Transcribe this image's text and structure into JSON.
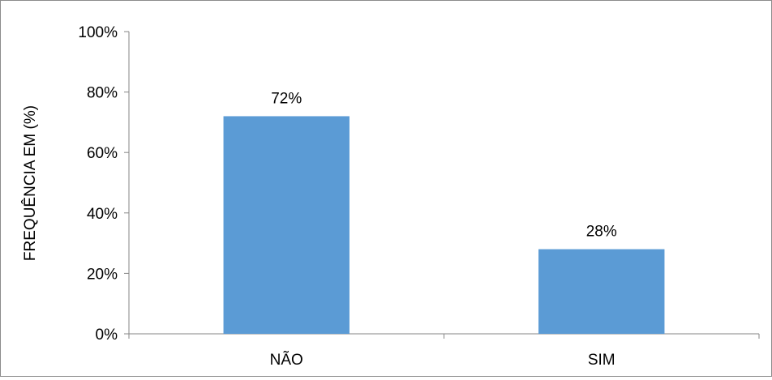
{
  "chart_data": {
    "type": "bar",
    "categories": [
      "NÃO",
      "SIM"
    ],
    "values": [
      72,
      28
    ],
    "data_labels": [
      "72%",
      "28%"
    ],
    "title": "",
    "xlabel": "",
    "ylabel": "FREQUÊNCIA EM (%)",
    "ylim": [
      0,
      100
    ],
    "yticks": [
      0,
      20,
      40,
      60,
      80,
      100
    ],
    "ytick_labels": [
      "0%",
      "20%",
      "40%",
      "60%",
      "80%",
      "100%"
    ],
    "grid": false,
    "legend": "none",
    "bar_color": "#5b9bd5"
  }
}
